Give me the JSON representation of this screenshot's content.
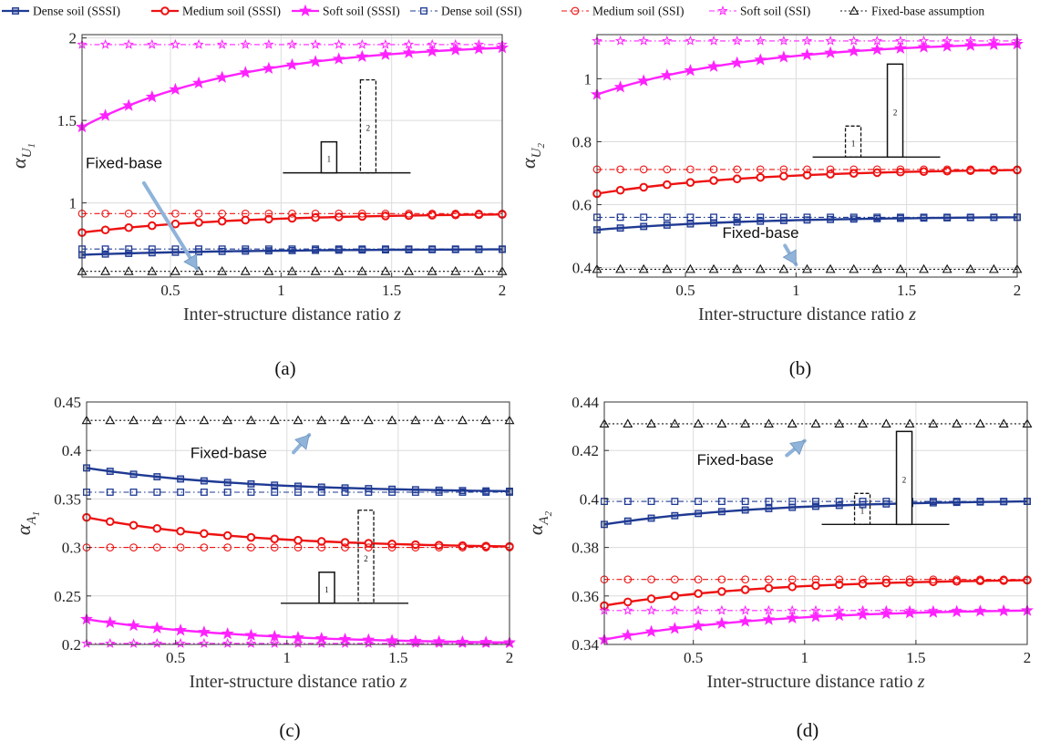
{
  "legend": [
    {
      "label": "Dense soil (SSSI)",
      "color": "#1f3a93",
      "marker": "square",
      "dash": "solid",
      "filled": true
    },
    {
      "label": "Medium soil (SSSI)",
      "color": "#ee1111",
      "marker": "circle",
      "dash": "solid",
      "filled": true
    },
    {
      "label": "Soft soil (SSSI)",
      "color": "#ff22ff",
      "marker": "star",
      "dash": "solid",
      "filled": true
    },
    {
      "label": "Dense soil (SSI)",
      "color": "#1f3a93",
      "marker": "square",
      "dash": "dashdot",
      "filled": false
    },
    {
      "label": "Medium soil (SSI)",
      "color": "#ee1111",
      "marker": "circle",
      "dash": "dashdot",
      "filled": false
    },
    {
      "label": "Soft soil (SSI)",
      "color": "#ff22ff",
      "marker": "star",
      "dash": "dashdot",
      "filled": false
    },
    {
      "label": "Fixed-base assumption",
      "color": "#111111",
      "marker": "triangle",
      "dash": "dotted",
      "filled": false
    }
  ],
  "chart_data": [
    {
      "type": "line",
      "panel": "(a)",
      "ylabel_symbol": "α",
      "ylabel_sub": "U",
      "ylabel_subsub": "1",
      "xlabel": "Inter-structure distance ratio",
      "xlabel_var": "z",
      "xlim": [
        0.1,
        2
      ],
      "ylim": [
        0.55,
        2.02
      ],
      "xticks": [
        0.5,
        1,
        1.5,
        2
      ],
      "xtick_labels": [
        "0.5",
        "1",
        "1.5",
        "2"
      ],
      "yticks": [
        1,
        1.5,
        2
      ],
      "ytick_labels": [
        "1",
        "1.5",
        "2"
      ],
      "grid": true,
      "series": [
        {
          "name": "Dense soil (SSSI)",
          "curve": "rise",
          "start": 0.685,
          "end": 0.718
        },
        {
          "name": "Medium soil (SSSI)",
          "curve": "rise",
          "start": 0.82,
          "end": 0.93
        },
        {
          "name": "Soft soil (SSSI)",
          "curve": "rise",
          "start": 1.46,
          "end": 1.94
        },
        {
          "name": "Dense soil (SSI)",
          "curve": "flat",
          "start": 0.72,
          "end": 0.72
        },
        {
          "name": "Medium soil (SSI)",
          "curve": "flat",
          "start": 0.935,
          "end": 0.935
        },
        {
          "name": "Soft soil (SSI)",
          "curve": "flat",
          "start": 1.96,
          "end": 1.96
        },
        {
          "name": "Fixed-base assumption",
          "curve": "flat",
          "start": 0.585,
          "end": 0.585
        }
      ],
      "annotation": {
        "text": "Fixed-base",
        "text_at": [
          0.1,
          1.21
        ],
        "arrow_from": [
          0.38,
          1.12
        ],
        "arrow_to": [
          0.62,
          0.6
        ]
      },
      "inset": {
        "solid": "1",
        "dashed": "2",
        "solid_short": true,
        "dashed_taller": true,
        "anchor": "right-middle"
      },
      "caption": "(a)"
    },
    {
      "type": "line",
      "panel": "(b)",
      "ylabel_symbol": "α",
      "ylabel_sub": "U",
      "ylabel_subsub": "2",
      "xlabel": "Inter-structure distance ratio",
      "xlabel_var": "z",
      "xlim": [
        0.1,
        2
      ],
      "ylim": [
        0.37,
        1.14
      ],
      "xticks": [
        0.5,
        1,
        1.5,
        2
      ],
      "xtick_labels": [
        "0.5",
        "1",
        "1.5",
        "2"
      ],
      "yticks": [
        0.4,
        0.6,
        0.8,
        1
      ],
      "ytick_labels": [
        "0.4",
        "0.6",
        "0.8",
        "1"
      ],
      "grid": true,
      "series": [
        {
          "name": "Dense soil (SSSI)",
          "curve": "rise",
          "start": 0.52,
          "end": 0.56
        },
        {
          "name": "Medium soil (SSSI)",
          "curve": "rise",
          "start": 0.635,
          "end": 0.71
        },
        {
          "name": "Soft soil (SSSI)",
          "curve": "rise",
          "start": 0.95,
          "end": 1.11
        },
        {
          "name": "Dense soil (SSI)",
          "curve": "flat",
          "start": 0.56,
          "end": 0.56
        },
        {
          "name": "Medium soil (SSI)",
          "curve": "flat",
          "start": 0.712,
          "end": 0.712
        },
        {
          "name": "Soft soil (SSI)",
          "curve": "flat",
          "start": 1.12,
          "end": 1.12
        },
        {
          "name": "Fixed-base assumption",
          "curve": "flat",
          "start": 0.395,
          "end": 0.395
        }
      ],
      "annotation": {
        "text": "Fixed-base",
        "text_at": [
          0.65,
          0.495
        ],
        "arrow_from": [
          0.95,
          0.47
        ],
        "arrow_to": [
          1.0,
          0.41
        ]
      },
      "inset": {
        "solid": "2",
        "dashed": "1",
        "solid_short": false,
        "dashed_taller": false,
        "anchor": "right-top"
      },
      "caption": "(b)"
    },
    {
      "type": "line",
      "panel": "(c)",
      "ylabel_symbol": "α",
      "ylabel_sub": "A",
      "ylabel_subsub": "1",
      "xlabel": "Inter-structure distance ratio",
      "xlabel_var": "z",
      "xlim": [
        0.1,
        2
      ],
      "ylim": [
        0.2,
        0.45
      ],
      "xticks": [
        0.5,
        1,
        1.5,
        2
      ],
      "xtick_labels": [
        "0.5",
        "1",
        "1.5",
        "2"
      ],
      "yticks": [
        0.2,
        0.25,
        0.3,
        0.35,
        0.4,
        0.45
      ],
      "ytick_labels": [
        "0.2",
        "0.25",
        "0.3",
        "0.35",
        "0.4",
        "0.45"
      ],
      "grid": true,
      "series": [
        {
          "name": "Dense soil (SSSI)",
          "curve": "fall",
          "start": 0.382,
          "end": 0.358
        },
        {
          "name": "Medium soil (SSSI)",
          "curve": "fall",
          "start": 0.331,
          "end": 0.301
        },
        {
          "name": "Soft soil (SSSI)",
          "curve": "fall",
          "start": 0.226,
          "end": 0.202
        },
        {
          "name": "Dense soil (SSI)",
          "curve": "flat",
          "start": 0.357,
          "end": 0.357
        },
        {
          "name": "Medium soil (SSI)",
          "curve": "flat",
          "start": 0.3,
          "end": 0.3
        },
        {
          "name": "Soft soil (SSI)",
          "curve": "flat",
          "start": 0.201,
          "end": 0.201
        },
        {
          "name": "Fixed-base assumption",
          "curve": "flat",
          "start": 0.431,
          "end": 0.431
        }
      ],
      "annotation": {
        "text": "Fixed-base",
        "text_at": [
          0.55,
          0.392
        ],
        "arrow_from": [
          1.03,
          0.398
        ],
        "arrow_to": [
          1.1,
          0.416
        ]
      },
      "inset": {
        "solid": "1",
        "dashed": "2",
        "solid_short": true,
        "dashed_taller": true,
        "anchor": "right-bottom"
      },
      "caption": "(c)"
    },
    {
      "type": "line",
      "panel": "(d)",
      "ylabel_symbol": "α",
      "ylabel_sub": "A",
      "ylabel_subsub": "2",
      "xlabel": "Inter-structure distance ratio",
      "xlabel_var": "z",
      "xlim": [
        0.1,
        2
      ],
      "ylim": [
        0.34,
        0.44
      ],
      "xticks": [
        0.5,
        1,
        1.5,
        2
      ],
      "xtick_labels": [
        "0.5",
        "1",
        "1.5",
        "2"
      ],
      "yticks": [
        0.34,
        0.36,
        0.38,
        0.4,
        0.42,
        0.44
      ],
      "ytick_labels": [
        "0.34",
        "0.36",
        "0.38",
        "0.4",
        "0.42",
        "0.44"
      ],
      "grid": true,
      "series": [
        {
          "name": "Dense soil (SSSI)",
          "curve": "rise",
          "start": 0.3895,
          "end": 0.399
        },
        {
          "name": "Medium soil (SSSI)",
          "curve": "rise",
          "start": 0.356,
          "end": 0.3665
        },
        {
          "name": "Soft soil (SSSI)",
          "curve": "rise",
          "start": 0.342,
          "end": 0.354
        },
        {
          "name": "Dense soil (SSI)",
          "curve": "flat",
          "start": 0.399,
          "end": 0.399
        },
        {
          "name": "Medium soil (SSI)",
          "curve": "flat",
          "start": 0.3668,
          "end": 0.3668
        },
        {
          "name": "Soft soil (SSI)",
          "curve": "flat",
          "start": 0.354,
          "end": 0.354
        },
        {
          "name": "Fixed-base assumption",
          "curve": "flat",
          "start": 0.431,
          "end": 0.431
        }
      ],
      "annotation": {
        "text": "Fixed-base",
        "text_at": [
          0.5,
          0.414
        ],
        "arrow_from": [
          0.92,
          0.418
        ],
        "arrow_to": [
          1.0,
          0.424
        ]
      },
      "inset": {
        "solid": "2",
        "dashed": "1",
        "solid_short": false,
        "dashed_taller": false,
        "anchor": "right-top"
      },
      "caption": "(d)"
    }
  ]
}
